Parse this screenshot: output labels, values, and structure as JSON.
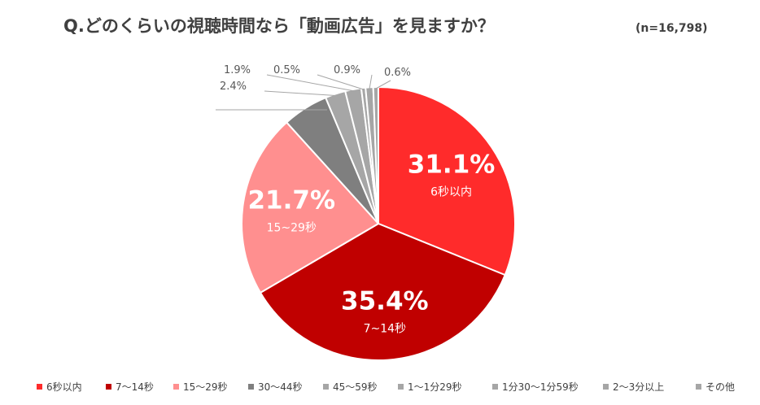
{
  "chart_data": {
    "type": "pie",
    "title": "Q.どのくらいの視聴時間なら「動画広告」を見ますか？",
    "subtitle": "(n=16,798)",
    "categories": [
      "6秒以内",
      "7～14秒",
      "15～29秒",
      "30～44秒",
      "45～59秒",
      "1～1分29秒",
      "1分30～1分59秒",
      "2～3分以上",
      "その他"
    ],
    "values": [
      31.1,
      35.4,
      21.7,
      5.4,
      2.4,
      1.9,
      0.5,
      0.9,
      0.6
    ],
    "labels": [
      "31.1%",
      "35.4%",
      "21.7%",
      "",
      "2.4%",
      "1.9%",
      "0.5%",
      "0.9%",
      "0.6%"
    ],
    "inside_category_labels": [
      "6秒以内",
      "7~14秒",
      "15~29秒",
      "",
      "",
      "",
      "",
      "",
      ""
    ],
    "colors": [
      "#ff2b2b",
      "#c00000",
      "#ff8f8f",
      "#7f7f7f",
      "#a6a6a6",
      "#a6a6a6",
      "#a6a6a6",
      "#a6a6a6",
      "#a6a6a6"
    ],
    "legend_position": "bottom"
  }
}
